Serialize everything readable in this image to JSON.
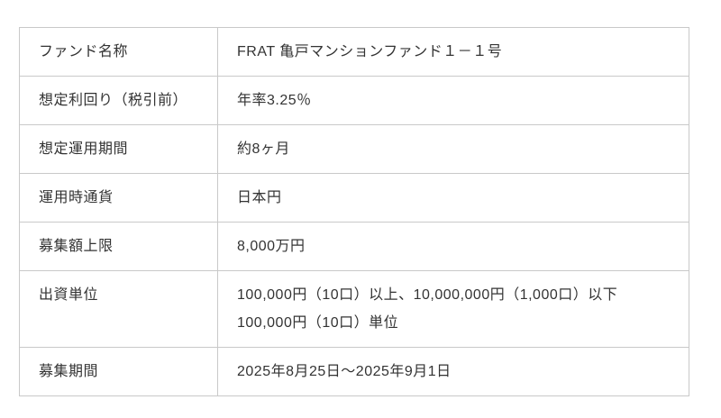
{
  "page": {
    "background_color": "#ffffff"
  },
  "table": {
    "border_color": "#c9c9c9",
    "text_color": "#333333",
    "rows": [
      {
        "label": "ファンド名称",
        "lines": [
          "FRAT 亀戸マンションファンド１－１号"
        ]
      },
      {
        "label": "想定利回り（税引前）",
        "lines": [
          "年率3.25％"
        ]
      },
      {
        "label": "想定運用期間",
        "lines": [
          "約8ヶ月"
        ]
      },
      {
        "label": "運用時通貨",
        "lines": [
          "日本円"
        ]
      },
      {
        "label": "募集額上限",
        "lines": [
          "8,000万円"
        ]
      },
      {
        "label": "出資単位",
        "lines": [
          "100,000円（10口）以上、10,000,000円（1,000口）以下",
          "100,000円（10口）単位"
        ]
      },
      {
        "label": "募集期間",
        "lines": [
          "2025年8月25日～2025年9月1日"
        ]
      }
    ]
  }
}
